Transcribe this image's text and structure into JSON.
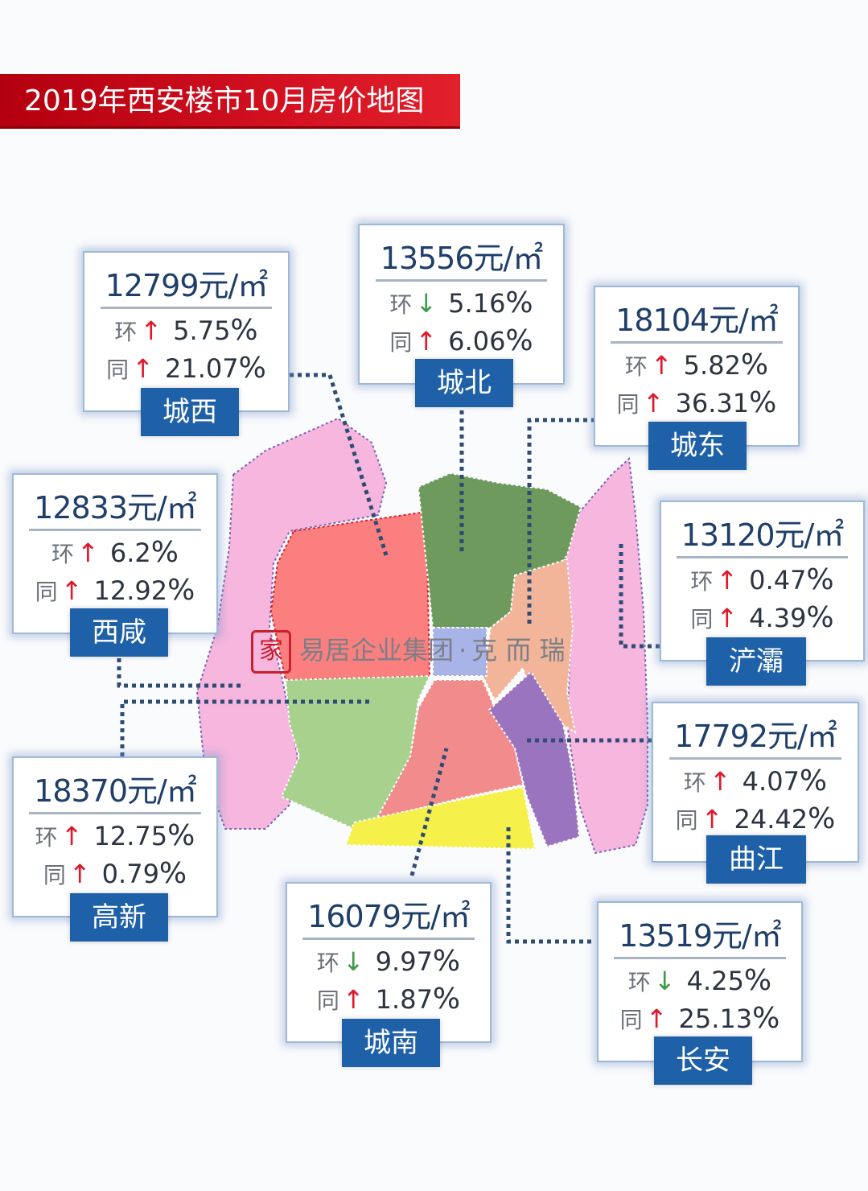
{
  "title": "2019年西安楼市10月房价地图",
  "watermark": {
    "logo": "家",
    "company": "易居企业集团",
    "dot": "·",
    "brand": "克 而 瑞"
  },
  "colors": {
    "title_bg": "#d21020",
    "label_bg": "#1f61a8",
    "up_arrow": "#e0182a",
    "down_arrow": "#3f9a4a",
    "chengxi": "#fb7f7f",
    "chengbei": "#6e9b5d",
    "chengdong": "#f2b59a",
    "chengnan": "#f28b8b",
    "gaoxin": "#a8d18e",
    "qujiang": "#9a74bf",
    "changan": "#f5f04a",
    "chanba": "#f6b6dd",
    "xixian": "#f6b6dd",
    "center": "#a8b4e8"
  },
  "districts": {
    "chengxi": {
      "name": "城西",
      "price": "12799元/㎡",
      "mom_label": "环",
      "mom_dir": "↑",
      "mom_value": "5.75",
      "yoy_label": "同",
      "yoy_dir": "↑",
      "yoy_value": "21.07",
      "pct": "%"
    },
    "chengbei": {
      "name": "城北",
      "price": "13556元/㎡",
      "mom_label": "环",
      "mom_dir": "↓",
      "mom_value": "5.16",
      "yoy_label": "同",
      "yoy_dir": "↑",
      "yoy_value": "6.06",
      "pct": "%"
    },
    "chengdong": {
      "name": "城东",
      "price": "18104元/㎡",
      "mom_label": "环",
      "mom_dir": "↑",
      "mom_value": "5.82",
      "yoy_label": "同",
      "yoy_dir": "↑",
      "yoy_value": "36.31",
      "pct": "%"
    },
    "xixian": {
      "name": "西咸",
      "price": "12833元/㎡",
      "mom_label": "环",
      "mom_dir": "↑",
      "mom_value": "6.2",
      "yoy_label": "同",
      "yoy_dir": "↑",
      "yoy_value": "12.92",
      "pct": "%"
    },
    "chanba": {
      "name": "浐灞",
      "price": "13120元/㎡",
      "mom_label": "环",
      "mom_dir": "↑",
      "mom_value": "0.47",
      "yoy_label": "同",
      "yoy_dir": "↑",
      "yoy_value": "4.39",
      "pct": "%"
    },
    "qujiang": {
      "name": "曲江",
      "price": "17792元/㎡",
      "mom_label": "环",
      "mom_dir": "↑",
      "mom_value": "4.07",
      "yoy_label": "同",
      "yoy_dir": "↑",
      "yoy_value": "24.42",
      "pct": "%"
    },
    "gaoxin": {
      "name": "高新",
      "price": "18370元/㎡",
      "mom_label": "环",
      "mom_dir": "↑",
      "mom_value": "12.75",
      "yoy_label": "同",
      "yoy_dir": "↑",
      "yoy_value": "0.79",
      "pct": "%"
    },
    "chengnan": {
      "name": "城南",
      "price": "16079元/㎡",
      "mom_label": "环",
      "mom_dir": "↓",
      "mom_value": "9.97",
      "yoy_label": "同",
      "yoy_dir": "↑",
      "yoy_value": "1.87",
      "pct": "%"
    },
    "changan": {
      "name": "长安",
      "price": "13519元/㎡",
      "mom_label": "环",
      "mom_dir": "↓",
      "mom_value": "4.25",
      "yoy_label": "同",
      "yoy_dir": "↑",
      "yoy_value": "25.13",
      "pct": "%"
    }
  }
}
